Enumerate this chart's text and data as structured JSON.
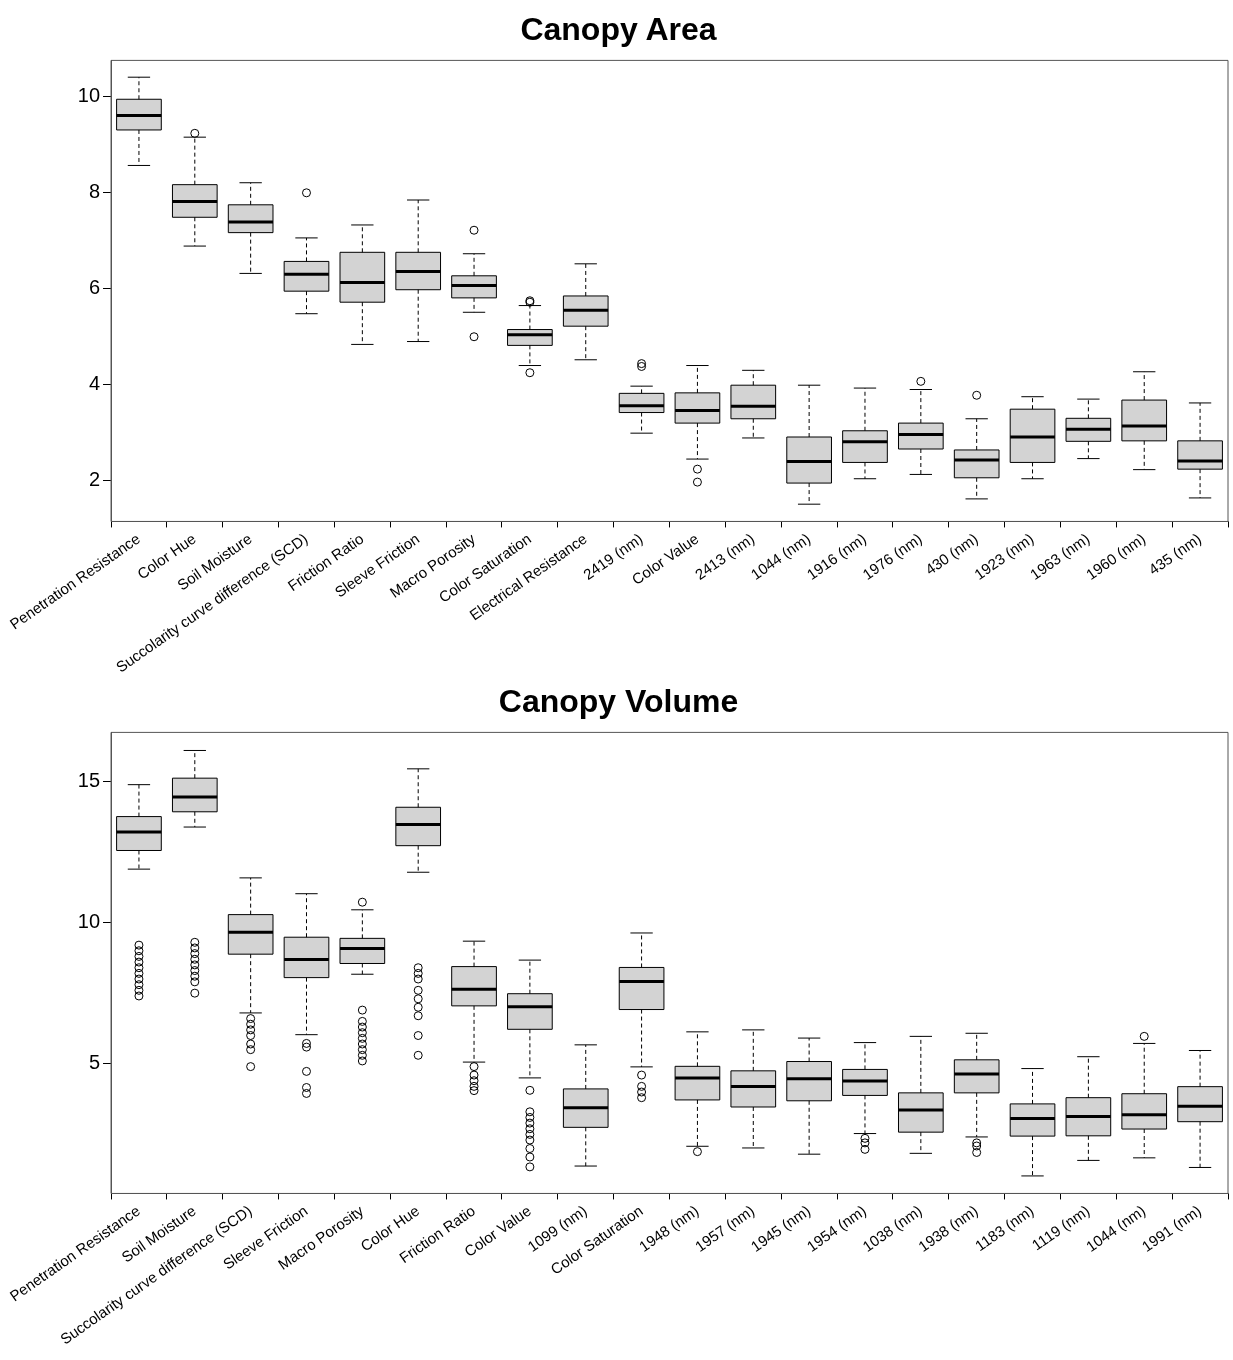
{
  "chart_data": [
    {
      "type": "box",
      "title": "Canopy Area",
      "color": "#d3d3d3",
      "ylim": [
        1.15,
        10.76
      ],
      "yticks": [
        2,
        4,
        6,
        8,
        10
      ],
      "categories": [
        "Penetration Resistance",
        "Color Hue",
        "Soil Moisture",
        "Succolarity curve difference (SCD)",
        "Friction Ratio",
        "Sleeve Friction",
        "Macro Porosity",
        "Color Saturation",
        "Electrical Resistance",
        "2419 (nm)",
        "Color Value",
        "2413 (nm)",
        "1044 (nm)",
        "1916 (nm)",
        "1976 (nm)",
        "430 (nm)",
        "1923 (nm)",
        "1963 (nm)",
        "1960 (nm)",
        "435 (nm)"
      ],
      "boxes": [
        {
          "low": 8.57,
          "q1": 9.31,
          "median": 9.61,
          "q3": 9.95,
          "high": 10.41
        },
        {
          "low": 6.89,
          "q1": 7.49,
          "median": 7.82,
          "q3": 8.17,
          "high": 9.16,
          "outliers": [
            9.24
          ]
        },
        {
          "low": 6.32,
          "q1": 7.17,
          "median": 7.39,
          "q3": 7.75,
          "high": 8.21
        },
        {
          "low": 5.48,
          "q1": 5.95,
          "median": 6.3,
          "q3": 6.57,
          "high": 7.06,
          "outliers": [
            8.0
          ]
        },
        {
          "low": 4.84,
          "q1": 5.72,
          "median": 6.13,
          "q3": 6.76,
          "high": 7.33
        },
        {
          "low": 4.9,
          "q1": 5.98,
          "median": 6.36,
          "q3": 6.76,
          "high": 7.85
        },
        {
          "low": 5.51,
          "q1": 5.81,
          "median": 6.07,
          "q3": 6.27,
          "high": 6.73,
          "outliers": [
            7.22,
            5.0
          ]
        },
        {
          "low": 4.4,
          "q1": 4.82,
          "median": 5.04,
          "q3": 5.15,
          "high": 5.65,
          "outliers": [
            5.75,
            5.72,
            4.25
          ]
        },
        {
          "low": 4.52,
          "q1": 5.22,
          "median": 5.55,
          "q3": 5.85,
          "high": 6.52
        },
        {
          "low": 2.99,
          "q1": 3.42,
          "median": 3.56,
          "q3": 3.82,
          "high": 3.97,
          "outliers": [
            4.44,
            4.38
          ]
        },
        {
          "low": 2.45,
          "q1": 3.2,
          "median": 3.46,
          "q3": 3.83,
          "high": 4.4,
          "outliers": [
            2.24,
            1.97
          ]
        },
        {
          "low": 2.89,
          "q1": 3.29,
          "median": 3.55,
          "q3": 3.99,
          "high": 4.3
        },
        {
          "low": 1.51,
          "q1": 1.95,
          "median": 2.4,
          "q3": 2.91,
          "high": 3.99
        },
        {
          "low": 2.04,
          "q1": 2.38,
          "median": 2.81,
          "q3": 3.04,
          "high": 3.93
        },
        {
          "low": 2.13,
          "q1": 2.66,
          "median": 2.96,
          "q3": 3.2,
          "high": 3.9,
          "outliers": [
            4.07
          ]
        },
        {
          "low": 1.62,
          "q1": 2.06,
          "median": 2.43,
          "q3": 2.64,
          "high": 3.29,
          "outliers": [
            3.78
          ]
        },
        {
          "low": 2.04,
          "q1": 2.38,
          "median": 2.91,
          "q3": 3.49,
          "high": 3.75
        },
        {
          "low": 2.46,
          "q1": 2.82,
          "median": 3.07,
          "q3": 3.3,
          "high": 3.7
        },
        {
          "low": 2.23,
          "q1": 2.83,
          "median": 3.14,
          "q3": 3.68,
          "high": 4.27
        },
        {
          "low": 1.64,
          "q1": 2.24,
          "median": 2.41,
          "q3": 2.83,
          "high": 3.62
        }
      ]
    },
    {
      "type": "box",
      "title": "Canopy Volume",
      "color": "#d3d3d3",
      "ylim": [
        0.41,
        16.73
      ],
      "yticks": [
        5,
        10,
        15
      ],
      "categories": [
        "Penetration Resistance",
        "Soil Moisture",
        "Succolarity curve difference (SCD)",
        "Sleeve Friction",
        "Macro Porosity",
        "Color Hue",
        "Friction Ratio",
        "Color Value",
        "1099 (nm)",
        "Color Saturation",
        "1948 (nm)",
        "1957 (nm)",
        "1945 (nm)",
        "1954 (nm)",
        "1038 (nm)",
        "1938 (nm)",
        "1183 (nm)",
        "1119 (nm)",
        "1044 (nm)",
        "1991 (nm)"
      ],
      "boxes": [
        {
          "low": 11.89,
          "q1": 12.55,
          "median": 13.2,
          "q3": 13.75,
          "high": 14.88,
          "outliers": [
            9.2,
            9.0,
            8.8,
            8.6,
            8.4,
            8.2,
            8.0,
            7.8,
            7.6,
            7.4
          ]
        },
        {
          "low": 13.38,
          "q1": 13.92,
          "median": 14.44,
          "q3": 15.11,
          "high": 16.09,
          "outliers": [
            9.3,
            9.1,
            8.9,
            8.7,
            8.5,
            8.3,
            8.1,
            7.9,
            7.5
          ]
        },
        {
          "low": 6.8,
          "q1": 8.88,
          "median": 9.66,
          "q3": 10.28,
          "high": 11.58,
          "outliers": [
            6.6,
            6.4,
            6.2,
            6.0,
            5.7,
            5.5,
            4.9
          ]
        },
        {
          "low": 6.03,
          "q1": 8.05,
          "median": 8.69,
          "q3": 9.48,
          "high": 11.02,
          "outliers": [
            5.72,
            5.59,
            4.73,
            4.16,
            3.95
          ]
        },
        {
          "low": 8.17,
          "q1": 8.55,
          "median": 9.08,
          "q3": 9.44,
          "high": 10.45,
          "outliers": [
            10.72,
            6.9,
            6.5,
            6.3,
            6.1,
            5.9,
            5.7,
            5.5,
            5.3,
            5.1
          ]
        },
        {
          "low": 11.78,
          "q1": 12.72,
          "median": 13.47,
          "q3": 14.08,
          "high": 15.44,
          "outliers": [
            8.4,
            8.2,
            8.0,
            7.6,
            7.3,
            7.0,
            6.7,
            6.0,
            5.3
          ]
        },
        {
          "low": 5.06,
          "q1": 7.05,
          "median": 7.64,
          "q3": 8.44,
          "high": 9.34,
          "outliers": [
            4.9,
            4.6,
            4.4,
            4.2,
            4.05
          ]
        },
        {
          "low": 4.5,
          "q1": 6.22,
          "median": 7.02,
          "q3": 7.48,
          "high": 8.67,
          "outliers": [
            4.06,
            3.3,
            3.1,
            2.9,
            2.7,
            2.5,
            2.3,
            2.0,
            1.7,
            1.35
          ]
        },
        {
          "low": 1.38,
          "q1": 2.75,
          "median": 3.44,
          "q3": 4.11,
          "high": 5.67
        },
        {
          "low": 4.89,
          "q1": 6.92,
          "median": 7.91,
          "q3": 8.41,
          "high": 9.63,
          "outliers": [
            4.6,
            4.2,
            4.0,
            3.8
          ]
        },
        {
          "low": 2.08,
          "q1": 3.72,
          "median": 4.5,
          "q3": 4.91,
          "high": 6.13,
          "outliers": [
            1.89
          ]
        },
        {
          "low": 2.02,
          "q1": 3.47,
          "median": 4.2,
          "q3": 4.75,
          "high": 6.2
        },
        {
          "low": 1.8,
          "q1": 3.69,
          "median": 4.47,
          "q3": 5.08,
          "high": 5.91
        },
        {
          "low": 2.53,
          "q1": 3.88,
          "median": 4.39,
          "q3": 4.8,
          "high": 5.75,
          "outliers": [
            2.36,
            2.2,
            1.97
          ]
        },
        {
          "low": 1.83,
          "q1": 2.58,
          "median": 3.36,
          "q3": 3.97,
          "high": 5.97
        },
        {
          "low": 2.41,
          "q1": 3.97,
          "median": 4.64,
          "q3": 5.14,
          "high": 6.08,
          "outliers": [
            2.2,
            2.09,
            1.86
          ]
        },
        {
          "low": 1.03,
          "q1": 2.44,
          "median": 3.06,
          "q3": 3.58,
          "high": 4.83
        },
        {
          "low": 1.58,
          "q1": 2.45,
          "median": 3.13,
          "q3": 3.8,
          "high": 5.25
        },
        {
          "low": 1.67,
          "q1": 2.69,
          "median": 3.2,
          "q3": 3.94,
          "high": 5.72,
          "outliers": [
            5.97
          ]
        },
        {
          "low": 1.33,
          "q1": 2.95,
          "median": 3.5,
          "q3": 4.19,
          "high": 5.47
        }
      ]
    }
  ]
}
